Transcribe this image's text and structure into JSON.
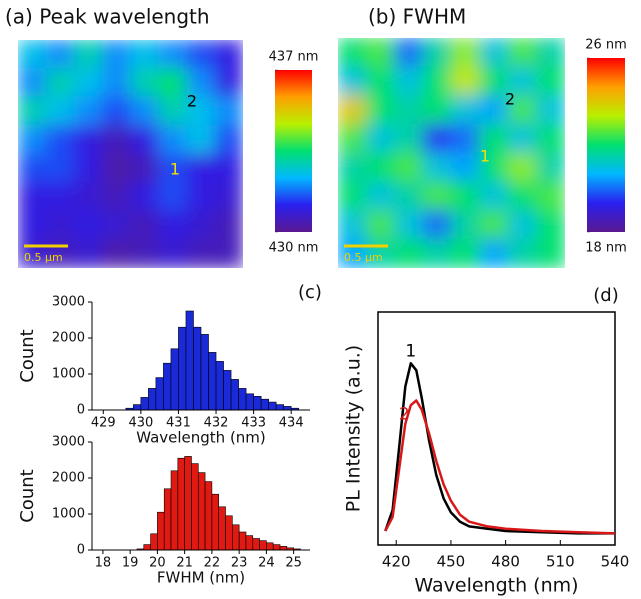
{
  "chart_data": [
    {
      "type": "heatmap",
      "title": "(a) Peak wavelength",
      "zlim": [
        430,
        437
      ],
      "cbticks": [
        {
          "value": 437,
          "label": "437 nm"
        },
        {
          "value": 430,
          "label": "430 nm"
        }
      ],
      "colorscale": [
        "#5a1890",
        "#2a20f0",
        "#00b8ff",
        "#00e070",
        "#b8f000",
        "#ffa000",
        "#ff0000"
      ],
      "scalebar": "0.5 µm",
      "annotations": [
        "1",
        "2"
      ],
      "z": [
        [
          432.5,
          432,
          433,
          432,
          432.5,
          432,
          431.5,
          431
        ],
        [
          432,
          433,
          432.5,
          432,
          433,
          433.5,
          432,
          431
        ],
        [
          433,
          432.5,
          432,
          431.5,
          432,
          433,
          432.5,
          432
        ],
        [
          432,
          431.5,
          431,
          430.5,
          431,
          432,
          432.5,
          431.5
        ],
        [
          431.5,
          431.5,
          431,
          430.3,
          430.5,
          431.5,
          431,
          431
        ],
        [
          431,
          431,
          430.8,
          430.5,
          431,
          431.5,
          431,
          430.8
        ],
        [
          431,
          430.8,
          431,
          430.8,
          430.5,
          431,
          430.8,
          430.5
        ],
        [
          430.8,
          430.5,
          430.8,
          430.3,
          430.5,
          430.8,
          430.5,
          430.5
        ]
      ]
    },
    {
      "type": "heatmap",
      "title": "(b) FWHM",
      "zlim": [
        18,
        26
      ],
      "cbticks": [
        {
          "value": 26,
          "label": "26 nm"
        },
        {
          "value": 18,
          "label": "18 nm"
        }
      ],
      "colorscale": [
        "#5a1890",
        "#2a20f0",
        "#00b8ff",
        "#00e070",
        "#b8f000",
        "#ffa000",
        "#ff0000"
      ],
      "scalebar": "0.5 µm",
      "annotations": [
        "1",
        "2"
      ],
      "z": [
        [
          22,
          22.5,
          20,
          21.5,
          23,
          21,
          22.5,
          21.5
        ],
        [
          21,
          22,
          21,
          22,
          23.5,
          22,
          21,
          22
        ],
        [
          24,
          22,
          21.5,
          22,
          21,
          20.5,
          22.5,
          21
        ],
        [
          22.5,
          21,
          21.5,
          19.5,
          20,
          22,
          21,
          22
        ],
        [
          21.5,
          22,
          22.5,
          21,
          20.5,
          22,
          23,
          21.5
        ],
        [
          22,
          21,
          21.5,
          22.5,
          22,
          21,
          22,
          22.5
        ],
        [
          21,
          22.5,
          21,
          20,
          21.5,
          22.5,
          21,
          22
        ],
        [
          20.5,
          21.5,
          22,
          21.5,
          22,
          20.5,
          21.5,
          22
        ]
      ]
    },
    {
      "type": "histogram",
      "panel_label": "(c)",
      "xlabel": "Wavelength (nm)",
      "ylabel": "Count",
      "color": "#1a2ad8",
      "bins": [
        429.6,
        429.8,
        430.0,
        430.2,
        430.4,
        430.6,
        430.8,
        431.0,
        431.2,
        431.4,
        431.6,
        431.8,
        432.0,
        432.2,
        432.4,
        432.6,
        432.8,
        433.0,
        433.2,
        433.4,
        433.6,
        433.8,
        434.0,
        434.2
      ],
      "values": [
        50,
        150,
        350,
        600,
        900,
        1300,
        1700,
        2300,
        2750,
        2300,
        2100,
        1600,
        1350,
        1100,
        850,
        600,
        450,
        380,
        300,
        220,
        150,
        100,
        50
      ],
      "xlim": [
        428.7,
        434.5
      ],
      "xticks": [
        429,
        430,
        431,
        432,
        433,
        434
      ],
      "ylim": [
        0,
        3000
      ],
      "yticks": [
        0,
        1000,
        2000,
        3000
      ]
    },
    {
      "type": "histogram",
      "xlabel": "FWHM (nm)",
      "ylabel": "Count",
      "color": "#e01a12",
      "bins": [
        19.25,
        19.5,
        19.75,
        20.0,
        20.25,
        20.5,
        20.75,
        21.0,
        21.25,
        21.5,
        21.75,
        22.0,
        22.25,
        22.5,
        22.75,
        23.0,
        23.25,
        23.5,
        23.75,
        24.0,
        24.25,
        24.5,
        24.75,
        25.0,
        25.25
      ],
      "values": [
        30,
        150,
        450,
        1050,
        1700,
        2200,
        2550,
        2600,
        2400,
        2150,
        1900,
        1550,
        1200,
        950,
        700,
        500,
        400,
        320,
        260,
        200,
        150,
        100,
        60,
        30
      ],
      "xlim": [
        17.6,
        25.6
      ],
      "xticks": [
        18,
        19,
        20,
        21,
        22,
        23,
        24,
        25
      ],
      "ylim": [
        0,
        3000
      ],
      "yticks": [
        0,
        1000,
        2000,
        3000
      ]
    },
    {
      "type": "line",
      "panel_label": "(d)",
      "xlabel": "Wavelength (nm)",
      "ylabel": "PL Intensity (a.u.)",
      "x": [
        414,
        418,
        422,
        425,
        428,
        431,
        434,
        438,
        442,
        446,
        450,
        455,
        460,
        470,
        480,
        500,
        520,
        540
      ],
      "series": [
        {
          "name": "1",
          "color": "#000000",
          "values": [
            0.06,
            0.15,
            0.45,
            0.68,
            0.78,
            0.75,
            0.63,
            0.45,
            0.3,
            0.2,
            0.14,
            0.1,
            0.08,
            0.07,
            0.06,
            0.055,
            0.05,
            0.05
          ]
        },
        {
          "name": "2",
          "color": "#d81818",
          "values": [
            0.06,
            0.12,
            0.35,
            0.52,
            0.6,
            0.62,
            0.58,
            0.48,
            0.36,
            0.26,
            0.19,
            0.13,
            0.1,
            0.08,
            0.07,
            0.06,
            0.055,
            0.05
          ]
        }
      ],
      "xlim": [
        410,
        540
      ],
      "xticks": [
        420,
        450,
        480,
        510,
        540
      ],
      "ylim": [
        0,
        1
      ]
    }
  ]
}
